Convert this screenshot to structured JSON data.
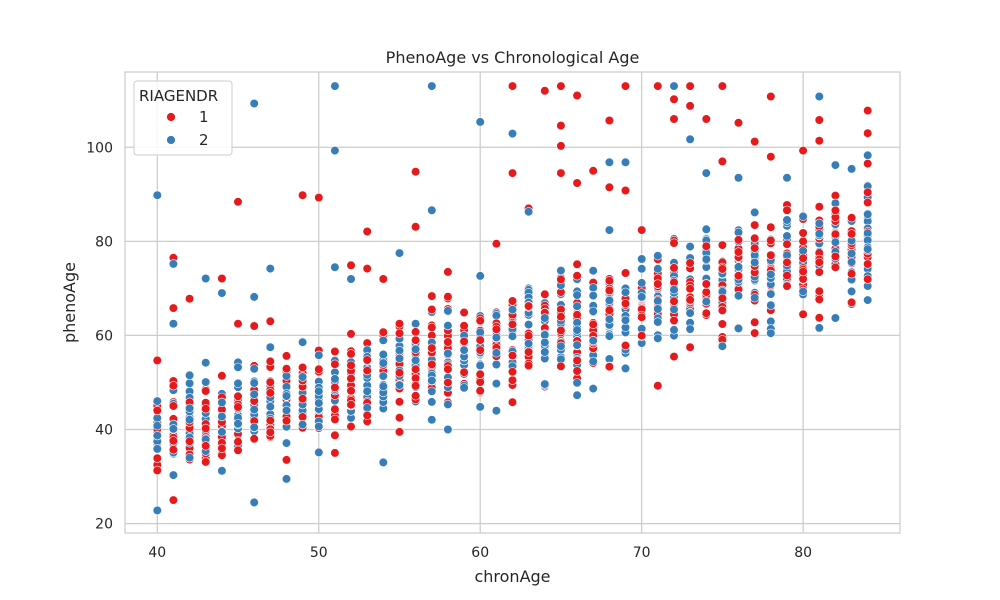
{
  "chart_data": {
    "type": "scatter",
    "title": "PhenoAge vs Chronological Age",
    "xlabel": "chronAge",
    "ylabel": "phenoAge",
    "xlim": [
      38,
      86
    ],
    "ylim": [
      18,
      116
    ],
    "xticks": [
      40,
      50,
      60,
      70,
      80
    ],
    "yticks": [
      20,
      40,
      60,
      80,
      100
    ],
    "grid": true,
    "legend": {
      "title": "RIAGENDR",
      "placement": "top-left"
    },
    "point_fit": {
      "slope": 0.95,
      "intercept": 0.5,
      "spread_low": 12,
      "spread_high": 14,
      "min_y": 22
    },
    "colors": {
      "1": "#e41a1c",
      "2": "#377eb8",
      "grid": "#cccccc",
      "frame": "#cccccc"
    },
    "series": [
      {
        "name": "1",
        "color": "#e41a1c",
        "outliers": [
          [
            41,
            76.5
          ],
          [
            41,
            65.8
          ],
          [
            42,
            67.8
          ],
          [
            44,
            72.1
          ],
          [
            45,
            88.4
          ],
          [
            45,
            62.5
          ],
          [
            46,
            62.0
          ],
          [
            47,
            63.0
          ],
          [
            49,
            89.8
          ],
          [
            50,
            89.3
          ],
          [
            52,
            74.9
          ],
          [
            53,
            82.1
          ],
          [
            53,
            74.2
          ],
          [
            54,
            72.0
          ],
          [
            56,
            94.8
          ],
          [
            56,
            83.1
          ],
          [
            58,
            73.5
          ],
          [
            61,
            79.5
          ],
          [
            62,
            113.0
          ],
          [
            62,
            94.5
          ],
          [
            63,
            87.0
          ],
          [
            64,
            112.0
          ],
          [
            65,
            113.0
          ],
          [
            65,
            104.6
          ],
          [
            65,
            100.3
          ],
          [
            65,
            94.5
          ],
          [
            66,
            111.0
          ],
          [
            66,
            92.4
          ],
          [
            67,
            95.0
          ],
          [
            68,
            105.7
          ],
          [
            68,
            91.5
          ],
          [
            69,
            113.0
          ],
          [
            69,
            90.8
          ],
          [
            71,
            113.0
          ],
          [
            72,
            110.2
          ],
          [
            72,
            106.0
          ],
          [
            73,
            113.0
          ],
          [
            73,
            108.8
          ],
          [
            74,
            106.0
          ],
          [
            75,
            113.0
          ],
          [
            75,
            97.0
          ],
          [
            76,
            105.2
          ],
          [
            77,
            101.2
          ],
          [
            78,
            110.8
          ],
          [
            78,
            98.0
          ],
          [
            80,
            99.3
          ],
          [
            81,
            105.8
          ],
          [
            81,
            101.4
          ],
          [
            84,
            107.8
          ],
          [
            84,
            103.0
          ],
          [
            40,
            54.7
          ],
          [
            41,
            25.0
          ],
          [
            55,
            39.5
          ],
          [
            72,
            55.5
          ],
          [
            73,
            57.5
          ]
        ]
      },
      {
        "name": "2",
        "color": "#377eb8",
        "outliers": [
          [
            40,
            89.8
          ],
          [
            40,
            22.8
          ],
          [
            41,
            75.2
          ],
          [
            41,
            62.5
          ],
          [
            43,
            72.1
          ],
          [
            44,
            69.0
          ],
          [
            46,
            109.3
          ],
          [
            46,
            68.2
          ],
          [
            46,
            24.5
          ],
          [
            47,
            74.2
          ],
          [
            47,
            57.5
          ],
          [
            48,
            29.5
          ],
          [
            51,
            113.0
          ],
          [
            51,
            99.3
          ],
          [
            51,
            74.5
          ],
          [
            52,
            72.0
          ],
          [
            54,
            33.0
          ],
          [
            55,
            77.5
          ],
          [
            57,
            113.0
          ],
          [
            57,
            86.6
          ],
          [
            58,
            40.0
          ],
          [
            60,
            105.4
          ],
          [
            61,
            44.0
          ],
          [
            62,
            102.9
          ],
          [
            63,
            86.3
          ],
          [
            66,
            47.3
          ],
          [
            67,
            48.7
          ],
          [
            68,
            96.8
          ],
          [
            68,
            82.4
          ],
          [
            69,
            96.8
          ],
          [
            72,
            113.0
          ],
          [
            73,
            101.7
          ],
          [
            74,
            94.5
          ],
          [
            75,
            57.7
          ],
          [
            76,
            93.5
          ],
          [
            79,
            93.5
          ],
          [
            81,
            110.8
          ],
          [
            82,
            96.2
          ],
          [
            82,
            63.7
          ],
          [
            83,
            95.4
          ],
          [
            84,
            98.3
          ],
          [
            84,
            67.5
          ]
        ]
      }
    ]
  }
}
